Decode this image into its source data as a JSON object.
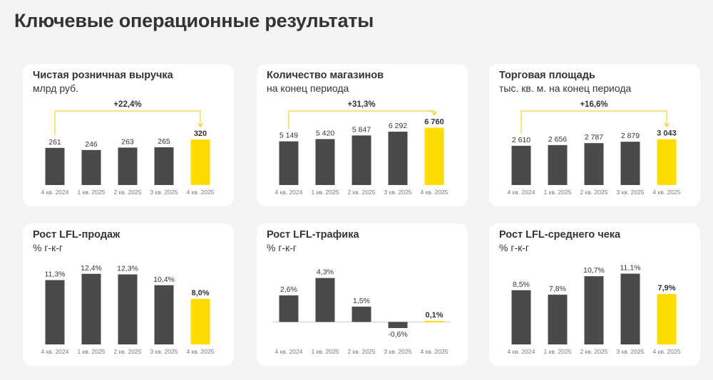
{
  "page": {
    "title": "Ключевые операционные результаты"
  },
  "colors": {
    "bar_dark": "#4a4a4a",
    "bar_accent": "#ffdc00",
    "text": "#333333",
    "tick": "#777777",
    "arrow": "#f0c800",
    "baseline": "#cccccc"
  },
  "cards": [
    {
      "title": "Чистая розничная выручка",
      "subtitle": "млрд руб.",
      "growth": "+22,4%"
    },
    {
      "title": "Количество магазинов",
      "subtitle": "на конец периода",
      "growth": "+31,3%"
    },
    {
      "title": "Торговая площадь",
      "subtitle": "тыс. кв. м. на конец периода",
      "growth": "+16,6%"
    },
    {
      "title": "Рост LFL-продаж",
      "subtitle": "% г-к-г"
    },
    {
      "title": "Рост LFL-трафика",
      "subtitle": "% г-к-г"
    },
    {
      "title": "Рост LFL-среднего чека",
      "subtitle": "% г-к-г"
    }
  ],
  "chart_data": [
    {
      "type": "bar",
      "title": "Чистая розничная выручка",
      "subtitle": "млрд руб.",
      "categories": [
        "4 кв. 2024",
        "1 кв. 2025",
        "2 кв. 2025",
        "3 кв. 2025",
        "4 кв. 2025"
      ],
      "values": [
        261,
        246,
        263,
        265,
        320
      ],
      "labels": [
        "261",
        "246",
        "263",
        "265",
        "320"
      ],
      "highlight_index": 4,
      "ylim": [
        0,
        560
      ],
      "growth_label": "+22,4%",
      "growth_from": 0,
      "growth_to": 4
    },
    {
      "type": "bar",
      "title": "Количество магазинов",
      "subtitle": "на конец периода",
      "categories": [
        "4 кв. 2024",
        "1 кв. 2025",
        "2 кв. 2025",
        "3 кв. 2025",
        "4 кв. 2025"
      ],
      "values": [
        5149,
        5420,
        5847,
        6292,
        6760
      ],
      "labels": [
        "5 149",
        "5 420",
        "5 847",
        "6 292",
        "6 760"
      ],
      "highlight_index": 4,
      "ylim": [
        0,
        9400
      ],
      "growth_label": "+31,3%",
      "growth_from": 0,
      "growth_to": 4
    },
    {
      "type": "bar",
      "title": "Торговая площадь",
      "subtitle": "тыс. кв. м. на конец периода",
      "categories": [
        "4 кв. 2024",
        "1 кв. 2025",
        "2 кв. 2025",
        "3 кв. 2025",
        "4 кв. 2025"
      ],
      "values": [
        2610,
        2656,
        2787,
        2879,
        3043
      ],
      "labels": [
        "2 610",
        "2 656",
        "2 787",
        "2 879",
        "3 043"
      ],
      "highlight_index": 4,
      "ylim": [
        0,
        5300
      ],
      "growth_label": "+16,6%",
      "growth_from": 0,
      "growth_to": 4
    },
    {
      "type": "bar",
      "title": "Рост LFL-продаж",
      "subtitle": "% г-к-г",
      "categories": [
        "4 кв. 2024",
        "1 кв. 2025",
        "2 кв. 2025",
        "3 кв. 2025",
        "4 кв. 2025"
      ],
      "values": [
        11.3,
        12.4,
        12.3,
        10.4,
        8.0
      ],
      "labels": [
        "11,3%",
        "12,4%",
        "12,3%",
        "10,4%",
        "8,0%"
      ],
      "highlight_index": 4,
      "ylim": [
        0,
        14.0
      ]
    },
    {
      "type": "bar",
      "title": "Рост LFL-трафика",
      "subtitle": "% г-к-г",
      "categories": [
        "4 кв. 2024",
        "1 кв. 2025",
        "2 кв. 2025",
        "3 кв. 2025",
        "4 кв. 2025"
      ],
      "values": [
        2.6,
        4.3,
        1.5,
        -0.6,
        0.1
      ],
      "labels": [
        "2,6%",
        "4,3%",
        "1,5%",
        "-0,6%",
        "0,1%"
      ],
      "highlight_index": 4,
      "ylim": [
        -2.2,
        5.6
      ]
    },
    {
      "type": "bar",
      "title": "Рост LFL-среднего чека",
      "subtitle": "% г-к-г",
      "categories": [
        "4 кв. 2024",
        "1 кв. 2025",
        "2 кв. 2025",
        "3 кв. 2025",
        "4 кв. 2025"
      ],
      "values": [
        8.5,
        7.8,
        10.7,
        11.1,
        7.9
      ],
      "labels": [
        "8,5%",
        "7,8%",
        "10,7%",
        "11,1%",
        "7,9%"
      ],
      "highlight_index": 4,
      "ylim": [
        0,
        12.5
      ]
    }
  ]
}
